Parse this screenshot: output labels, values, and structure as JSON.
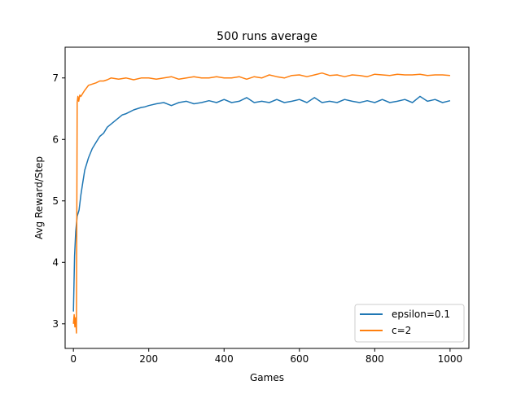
{
  "chart_data": {
    "type": "line",
    "title": "500 runs average",
    "xlabel": "Games",
    "ylabel": "Avg Reward/Step",
    "xlim": [
      -22,
      1050
    ],
    "ylim": [
      2.6,
      7.5
    ],
    "xticks": [
      0,
      200,
      400,
      600,
      800,
      1000
    ],
    "xtick_labels": [
      "0",
      "200",
      "400",
      "600",
      "800",
      "1000"
    ],
    "yticks": [
      3,
      4,
      5,
      6,
      7
    ],
    "ytick_labels": [
      "3",
      "4",
      "5",
      "6",
      "7"
    ],
    "grid": false,
    "legend": {
      "position": "lower right"
    },
    "series": [
      {
        "name": "epsilon=0.1",
        "color": "#1f77b4",
        "x": [
          0,
          3,
          6,
          10,
          15,
          20,
          25,
          30,
          40,
          50,
          60,
          70,
          80,
          90,
          100,
          110,
          120,
          130,
          140,
          150,
          160,
          170,
          180,
          190,
          200,
          220,
          240,
          260,
          280,
          300,
          320,
          340,
          360,
          380,
          400,
          420,
          440,
          460,
          480,
          500,
          520,
          540,
          560,
          580,
          600,
          620,
          640,
          660,
          680,
          700,
          720,
          740,
          760,
          780,
          800,
          820,
          840,
          860,
          880,
          900,
          920,
          940,
          960,
          980,
          1000
        ],
        "values": [
          3.2,
          4.1,
          4.5,
          4.75,
          4.85,
          5.1,
          5.3,
          5.5,
          5.7,
          5.85,
          5.95,
          6.05,
          6.1,
          6.2,
          6.25,
          6.3,
          6.35,
          6.4,
          6.42,
          6.45,
          6.48,
          6.5,
          6.52,
          6.53,
          6.55,
          6.58,
          6.6,
          6.55,
          6.6,
          6.62,
          6.58,
          6.6,
          6.63,
          6.6,
          6.65,
          6.6,
          6.62,
          6.68,
          6.6,
          6.62,
          6.6,
          6.65,
          6.6,
          6.62,
          6.65,
          6.6,
          6.68,
          6.6,
          6.62,
          6.6,
          6.65,
          6.62,
          6.6,
          6.63,
          6.6,
          6.65,
          6.6,
          6.62,
          6.65,
          6.6,
          6.7,
          6.62,
          6.65,
          6.6,
          6.63
        ]
      },
      {
        "name": "c=2",
        "color": "#ff7f0e",
        "x": [
          0,
          2,
          4,
          6,
          8,
          10,
          12,
          14,
          17,
          20,
          25,
          30,
          40,
          50,
          60,
          70,
          80,
          90,
          100,
          120,
          140,
          160,
          180,
          200,
          220,
          240,
          260,
          280,
          300,
          320,
          340,
          360,
          380,
          400,
          420,
          440,
          460,
          480,
          500,
          520,
          540,
          560,
          580,
          600,
          620,
          640,
          660,
          680,
          700,
          720,
          740,
          760,
          780,
          800,
          820,
          840,
          860,
          880,
          900,
          920,
          940,
          960,
          980,
          1000
        ],
        "values": [
          3.0,
          3.15,
          2.95,
          3.1,
          2.85,
          6.6,
          6.7,
          6.62,
          6.72,
          6.7,
          6.75,
          6.8,
          6.88,
          6.9,
          6.92,
          6.95,
          6.95,
          6.97,
          7.0,
          6.98,
          7.0,
          6.97,
          7.0,
          7.0,
          6.98,
          7.0,
          7.02,
          6.98,
          7.0,
          7.02,
          7.0,
          7.0,
          7.02,
          7.0,
          7.0,
          7.02,
          6.98,
          7.02,
          7.0,
          7.05,
          7.02,
          7.0,
          7.04,
          7.05,
          7.02,
          7.05,
          7.08,
          7.04,
          7.05,
          7.02,
          7.05,
          7.04,
          7.02,
          7.06,
          7.05,
          7.04,
          7.06,
          7.05,
          7.05,
          7.06,
          7.04,
          7.05,
          7.05,
          7.04
        ]
      }
    ]
  }
}
